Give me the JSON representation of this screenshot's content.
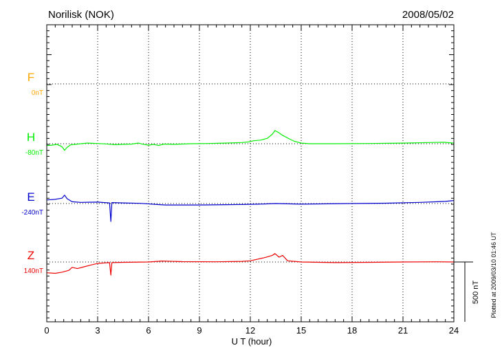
{
  "header": {
    "station": "Norilisk (NOK)",
    "date": "2008/05/02"
  },
  "side_note": "Plotted at 2009/03/10 01:46 UT",
  "scale_bar": {
    "label": "500 nT",
    "value_nT": 500
  },
  "chart_data": {
    "type": "line",
    "title": "Norilisk (NOK)",
    "xlabel": "U T (hour)",
    "xlim": [
      0,
      24
    ],
    "x_ticks": [
      0,
      3,
      6,
      9,
      12,
      15,
      18,
      21,
      24
    ],
    "x_tick_labels": [
      "0",
      "3",
      "6",
      "9",
      "12",
      "15",
      "18",
      "21",
      "24"
    ],
    "units": "nT",
    "grid": true,
    "series": [
      {
        "name": "F",
        "baseline_label": "0nT",
        "color": "#ffa500",
        "points": []
      },
      {
        "name": "H",
        "baseline_label": "-80nT",
        "color": "#00ee00",
        "points": [
          [
            0.0,
            -15
          ],
          [
            0.3,
            -12
          ],
          [
            0.6,
            -5
          ],
          [
            0.9,
            -25
          ],
          [
            1.05,
            -55
          ],
          [
            1.2,
            -30
          ],
          [
            1.4,
            -10
          ],
          [
            1.7,
            -5
          ],
          [
            2.0,
            0
          ],
          [
            2.4,
            5
          ],
          [
            3.0,
            2
          ],
          [
            3.5,
            -2
          ],
          [
            4.0,
            -8
          ],
          [
            4.5,
            -5
          ],
          [
            5.0,
            -3
          ],
          [
            5.4,
            5
          ],
          [
            5.6,
            -2
          ],
          [
            6.0,
            -12
          ],
          [
            6.3,
            -5
          ],
          [
            6.6,
            -15
          ],
          [
            6.9,
            -3
          ],
          [
            7.5,
            -5
          ],
          [
            8.5,
            0
          ],
          [
            9.5,
            2
          ],
          [
            10.5,
            5
          ],
          [
            11.5,
            10
          ],
          [
            11.9,
            15
          ],
          [
            12.2,
            25
          ],
          [
            12.6,
            30
          ],
          [
            13.0,
            45
          ],
          [
            13.3,
            80
          ],
          [
            13.45,
            110
          ],
          [
            13.65,
            95
          ],
          [
            13.9,
            70
          ],
          [
            14.3,
            40
          ],
          [
            14.6,
            20
          ],
          [
            15.0,
            5
          ],
          [
            15.5,
            0
          ],
          [
            17.0,
            0
          ],
          [
            19.0,
            2
          ],
          [
            21.0,
            5
          ],
          [
            22.5,
            10
          ],
          [
            23.4,
            12
          ],
          [
            24.0,
            5
          ]
        ]
      },
      {
        "name": "E",
        "baseline_label": "-240nT",
        "color": "#0000cc",
        "points": [
          [
            0.0,
            30
          ],
          [
            0.5,
            35
          ],
          [
            0.9,
            45
          ],
          [
            1.05,
            70
          ],
          [
            1.2,
            40
          ],
          [
            1.5,
            15
          ],
          [
            2.0,
            10
          ],
          [
            3.0,
            12
          ],
          [
            3.7,
            5
          ],
          [
            3.78,
            -150
          ],
          [
            3.84,
            8
          ],
          [
            4.5,
            5
          ],
          [
            5.5,
            2
          ],
          [
            6.5,
            -8
          ],
          [
            7.0,
            -12
          ],
          [
            9.0,
            -12
          ],
          [
            11.5,
            -8
          ],
          [
            12.5,
            -5
          ],
          [
            13.5,
            0
          ],
          [
            15.0,
            -5
          ],
          [
            18.0,
            0
          ],
          [
            20.0,
            3
          ],
          [
            22.0,
            10
          ],
          [
            23.5,
            18
          ],
          [
            24.0,
            25
          ]
        ]
      },
      {
        "name": "Z",
        "baseline_label": "140nT",
        "color": "#ee0000",
        "points": [
          [
            0.0,
            -90
          ],
          [
            0.5,
            -95
          ],
          [
            0.9,
            -85
          ],
          [
            1.3,
            -70
          ],
          [
            1.5,
            -45
          ],
          [
            1.8,
            -55
          ],
          [
            2.2,
            -40
          ],
          [
            2.6,
            -25
          ],
          [
            3.0,
            -12
          ],
          [
            3.7,
            -5
          ],
          [
            3.78,
            -110
          ],
          [
            3.84,
            -5
          ],
          [
            4.5,
            -3
          ],
          [
            6.0,
            0
          ],
          [
            6.8,
            8
          ],
          [
            8.0,
            3
          ],
          [
            10.0,
            2
          ],
          [
            11.5,
            5
          ],
          [
            12.0,
            10
          ],
          [
            12.8,
            35
          ],
          [
            13.3,
            55
          ],
          [
            13.45,
            70
          ],
          [
            13.7,
            40
          ],
          [
            13.9,
            55
          ],
          [
            14.2,
            10
          ],
          [
            14.6,
            5
          ],
          [
            15.0,
            0
          ],
          [
            17.0,
            -5
          ],
          [
            19.0,
            -3
          ],
          [
            21.0,
            0
          ],
          [
            23.0,
            2
          ],
          [
            24.0,
            0
          ]
        ]
      }
    ]
  }
}
